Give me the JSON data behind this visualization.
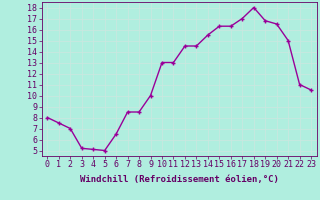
{
  "x": [
    0,
    1,
    2,
    3,
    4,
    5,
    6,
    7,
    8,
    9,
    10,
    11,
    12,
    13,
    14,
    15,
    16,
    17,
    18,
    19,
    20,
    21,
    22,
    23
  ],
  "y": [
    8.0,
    7.5,
    7.0,
    5.2,
    5.1,
    5.0,
    6.5,
    8.5,
    8.5,
    10.0,
    13.0,
    13.0,
    14.5,
    14.5,
    15.5,
    16.3,
    16.3,
    17.0,
    18.0,
    16.8,
    16.5,
    15.0,
    11.0,
    10.5
  ],
  "line_color": "#990099",
  "marker": "+",
  "marker_color": "#990099",
  "bg_color": "#b0eedf",
  "grid_color": "#c8e8e0",
  "xlabel": "Windchill (Refroidissement éolien,°C)",
  "xlabel_color": "#660066",
  "tick_color": "#660066",
  "ylim": [
    4.5,
    18.5
  ],
  "xlim": [
    -0.5,
    23.5
  ],
  "yticks": [
    5,
    6,
    7,
    8,
    9,
    10,
    11,
    12,
    13,
    14,
    15,
    16,
    17,
    18
  ],
  "xticks": [
    0,
    1,
    2,
    3,
    4,
    5,
    6,
    7,
    8,
    9,
    10,
    11,
    12,
    13,
    14,
    15,
    16,
    17,
    18,
    19,
    20,
    21,
    22,
    23
  ],
  "spine_color": "#660066",
  "label_fontsize": 6.5,
  "tick_fontsize": 6,
  "linewidth": 1.0,
  "markersize": 3.5,
  "markeredgewidth": 1.0
}
